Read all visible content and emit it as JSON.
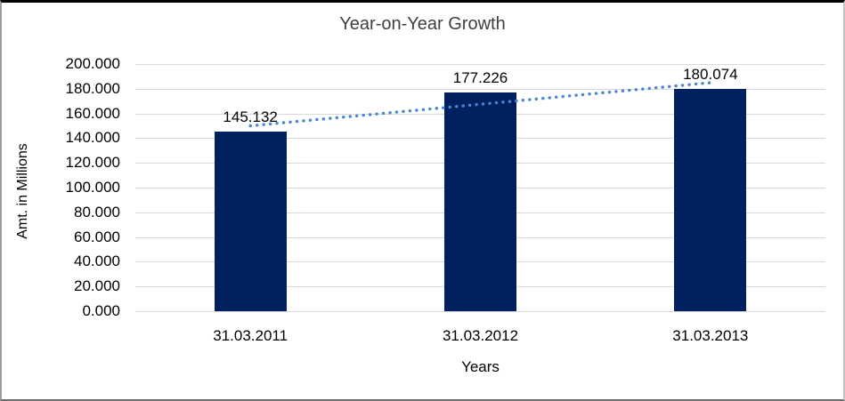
{
  "chart_data": {
    "type": "bar",
    "title": "Year-on-Year Growth",
    "xlabel": "Years",
    "ylabel": "Amt. in Millions",
    "categories": [
      "31.03.2011",
      "31.03.2012",
      "31.03.2013"
    ],
    "values": [
      145.132,
      177.226,
      180.074
    ],
    "data_labels": [
      "145.132",
      "177.226",
      "180.074"
    ],
    "ylim": [
      0,
      200
    ],
    "ytick_step": 20,
    "ytick_labels": [
      "0.000",
      "20.000",
      "40.000",
      "60.000",
      "80.000",
      "100.000",
      "120.000",
      "140.000",
      "160.000",
      "180.000",
      "200.000"
    ],
    "grid": true,
    "legend": "none",
    "bar_color": "#002060",
    "gridline_color": "#d9d9d9",
    "trendline": {
      "type": "linear",
      "style": "dotted",
      "color": "#4a86d0",
      "start_value": 150.0,
      "end_value": 184.9
    }
  }
}
